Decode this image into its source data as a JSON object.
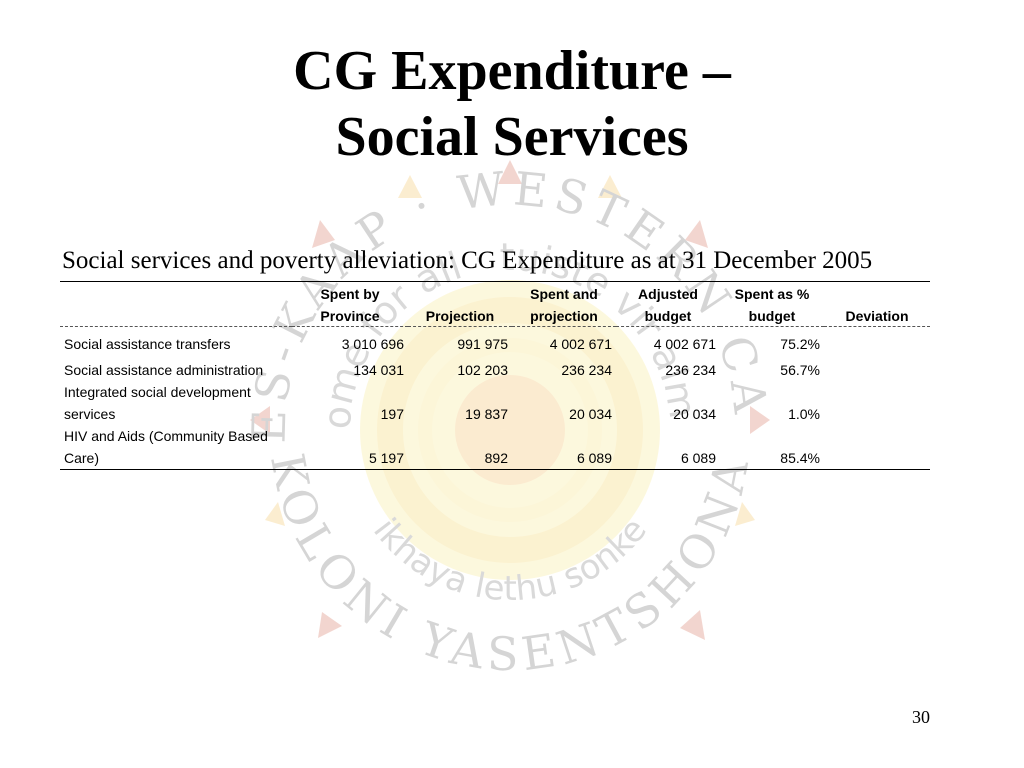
{
  "slide": {
    "title_line1": "CG Expenditure –",
    "title_line2": "Social Services",
    "subtitle": "Social services and poverty alleviation: CG Expenditure as at 31 December 2005",
    "page_number": "30"
  },
  "watermark": {
    "ring_text_top": "WES-KAAP · WESTERN CAPE",
    "ring_text_bottom": "KOLONI YASENTSHONA",
    "inner_text_top": "home for all · tuiste vir almal",
    "inner_text_bottom": "ikhaya lethu sonke"
  },
  "table": {
    "headers": [
      {
        "line1": "",
        "line2": ""
      },
      {
        "line1": "Spent by",
        "line2": "Province"
      },
      {
        "line1": "",
        "line2": "Projection"
      },
      {
        "line1": "Spent and",
        "line2": "projection"
      },
      {
        "line1": "Adjusted",
        "line2": "budget"
      },
      {
        "line1": "Spent as %",
        "line2": "budget"
      },
      {
        "line1": "",
        "line2": "Deviation"
      }
    ],
    "rows": [
      {
        "label1": "",
        "label2": "Social assistance transfers",
        "spent": "3 010 696",
        "projection": "991 975",
        "spent_projection": "4 002 671",
        "adjusted": "4 002 671",
        "pct": "75.2%",
        "deviation": ""
      },
      {
        "label1": "",
        "label2": "Social assistance administration",
        "spent": "134 031",
        "projection": "102 203",
        "spent_projection": "236 234",
        "adjusted": "236 234",
        "pct": "56.7%",
        "deviation": ""
      },
      {
        "label1": "Integrated social development",
        "label2": "services",
        "spent": "197",
        "projection": "19 837",
        "spent_projection": "20 034",
        "adjusted": "20 034",
        "pct": "1.0%",
        "deviation": ""
      },
      {
        "label1": "HIV and Aids (Community Based",
        "label2": "Care)",
        "spent": "5 197",
        "projection": "892",
        "spent_projection": "6 089",
        "adjusted": "6 089",
        "pct": "85.4%",
        "deviation": ""
      }
    ]
  },
  "colors": {
    "sun_yellow": "#f5e06a",
    "sun_orange": "#f0a830",
    "ring_red": "#c8462a",
    "ring_text": "#444444"
  }
}
